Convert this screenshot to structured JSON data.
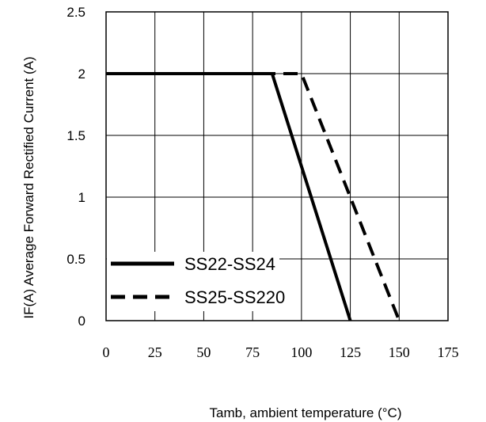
{
  "chart_data": {
    "type": "line",
    "xlabel": "Tamb, ambient temperature (°C)",
    "ylabel": "IF(A)  Average Forward Rectified Current (A)",
    "xlim": [
      0,
      175
    ],
    "ylim": [
      0,
      2.5
    ],
    "xticks": [
      "0",
      "25",
      "50",
      "75",
      "100",
      "125",
      "150",
      "175"
    ],
    "yticks": [
      "0",
      "0.5",
      "1",
      "1.5",
      "2",
      "2.5"
    ],
    "grid": true,
    "legend_position": "bottom-left",
    "series": [
      {
        "name": "SS22-SS24",
        "style": "solid",
        "x": [
          0,
          85,
          125
        ],
        "y": [
          2,
          2,
          0
        ]
      },
      {
        "name": "SS25-SS220",
        "style": "dashed",
        "x": [
          0,
          100,
          150
        ],
        "y": [
          2,
          2,
          0
        ]
      }
    ]
  }
}
